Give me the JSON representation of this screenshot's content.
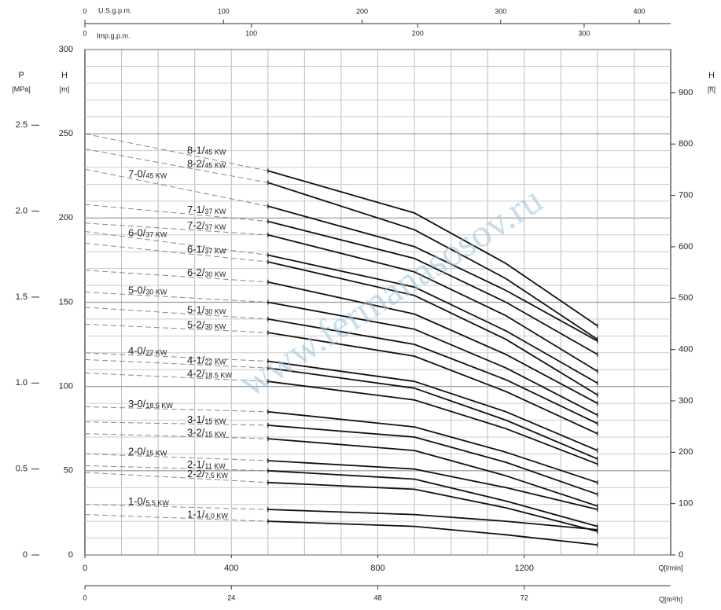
{
  "chart_data": {
    "type": "line",
    "x": [
      0,
      500,
      900,
      1150,
      1400
    ],
    "series": [
      {
        "name": "8-1/",
        "power": "45 KW",
        "values": [
          250,
          228,
          203,
          173,
          136
        ]
      },
      {
        "name": "8-2/",
        "power": "45 KW",
        "values": [
          241,
          221,
          193,
          164,
          128
        ]
      },
      {
        "name": "7-0/",
        "power": "45 KW",
        "values": [
          229,
          207,
          183,
          157,
          127
        ]
      },
      {
        "name": "7-1/",
        "power": "37 KW",
        "values": [
          208,
          198,
          176,
          150,
          119
        ]
      },
      {
        "name": "7-2/",
        "power": "37 KW",
        "values": [
          197,
          190,
          168,
          142,
          109
        ]
      },
      {
        "name": "6-0/",
        "power": "37 KW",
        "values": [
          192,
          178,
          159,
          133,
          102
        ]
      },
      {
        "name": "6-1/",
        "power": "37 KW",
        "values": [
          185,
          174,
          154,
          128,
          95
        ]
      },
      {
        "name": "6-2/",
        "power": "30 KW",
        "values": [
          169,
          162,
          143,
          119,
          90
        ]
      },
      {
        "name": "5-0/",
        "power": "30 KW",
        "values": [
          156,
          150,
          134,
          111,
          83
        ]
      },
      {
        "name": "5-1/",
        "power": "30 KW",
        "values": [
          147,
          140,
          125,
          104,
          78
        ]
      },
      {
        "name": "5-2/",
        "power": "30 KW",
        "values": [
          137,
          132,
          118,
          97,
          72
        ]
      },
      {
        "name": "4-0/",
        "power": "22 KW",
        "values": [
          120,
          115,
          103,
          85,
          62
        ]
      },
      {
        "name": "4-1/",
        "power": "22 KW",
        "values": [
          116,
          111,
          99,
          80,
          57
        ]
      },
      {
        "name": "4-2/",
        "power": "18.5 KW",
        "values": [
          108,
          103,
          92,
          75,
          54
        ]
      },
      {
        "name": "3-0/",
        "power": "18.5 KW",
        "values": [
          88,
          85,
          76,
          61,
          43
        ]
      },
      {
        "name": "3-1/",
        "power": "15 KW",
        "values": [
          79,
          77,
          70,
          55,
          36
        ]
      },
      {
        "name": "3-2/",
        "power": "15 KW",
        "values": [
          72,
          69,
          62,
          47,
          29
        ]
      },
      {
        "name": "2-0/",
        "power": "15 KW",
        "values": [
          60,
          56,
          51,
          40,
          27
        ]
      },
      {
        "name": "2-1/",
        "power": "11 KW",
        "values": [
          53,
          50,
          45,
          32,
          17
        ]
      },
      {
        "name": "2-2/",
        "power": "7.5 KW",
        "values": [
          49,
          43,
          39,
          28,
          14
        ]
      },
      {
        "name": "1-0/",
        "power": "5.5 KW",
        "values": [
          30,
          27,
          24,
          20,
          15
        ]
      },
      {
        "name": "1-1/",
        "power": "4.0 KW",
        "values": [
          24,
          20,
          17,
          12,
          6
        ]
      }
    ],
    "color": "#111",
    "dash_color": "#888",
    "xlim": [
      0,
      1600
    ],
    "xticks": [
      0,
      400,
      800,
      1200
    ],
    "xlabel": "Q[l/min]",
    "ylim": [
      0,
      300
    ],
    "yticks": [
      0,
      50,
      100,
      150,
      200,
      250,
      300
    ],
    "ylabel": "H",
    "yunit": "[m]",
    "xgrid": [
      100,
      200,
      300,
      400,
      500,
      600,
      700,
      800,
      900,
      1000,
      1100,
      1200,
      1300,
      1400,
      1500
    ],
    "ygrid": [
      10,
      20,
      30,
      40,
      50,
      60,
      70,
      80,
      90,
      100,
      110,
      120,
      130,
      140,
      150,
      160,
      170,
      180,
      190,
      200,
      210,
      220,
      230,
      240,
      250,
      260,
      270,
      280,
      290
    ],
    "pressure_axis": {
      "label": "P",
      "unit": "[MPa]",
      "lim": [
        0,
        2.94
      ],
      "ticks": [
        0,
        0.5,
        {
          "value": 1,
          "label": "1.0"
        },
        1.5,
        {
          "value": 2,
          "label": "2.0"
        },
        2.5
      ]
    },
    "feet_axis": {
      "label": "H",
      "unit": "[ft]",
      "lim": [
        0,
        984
      ],
      "ticks": [
        0,
        100,
        200,
        300,
        400,
        500,
        600,
        700,
        800,
        900
      ]
    },
    "m3h_axis": {
      "label": "Q[m³/h]",
      "lim": [
        0,
        96
      ],
      "ticks": [
        0,
        24,
        48,
        72
      ]
    },
    "usgpm_axis": {
      "label": "U.S.g.p.m.",
      "lim": [
        0,
        422.7
      ],
      "ticks": [
        0,
        100,
        200,
        300,
        400
      ]
    },
    "impgpm_axis": {
      "label": "Imp.g.p.m.",
      "lim": [
        0,
        352
      ],
      "ticks": [
        0,
        100,
        200,
        300
      ]
    },
    "watermark": "www.fermanasosov.ru"
  }
}
